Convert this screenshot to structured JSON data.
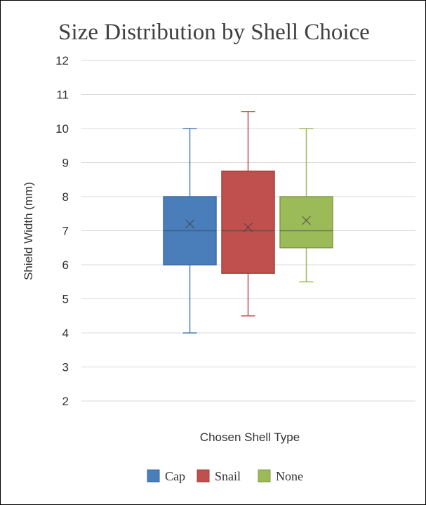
{
  "chart_data": {
    "type": "box",
    "title": "Size Distribution by Shell Choice",
    "xlabel": "Chosen Shell Type",
    "ylabel": "Shield Width (mm)",
    "ylim": [
      2,
      12
    ],
    "yticks": [
      2,
      3,
      4,
      5,
      6,
      7,
      8,
      9,
      10,
      11,
      12
    ],
    "grid": true,
    "legend_position": "bottom",
    "series": [
      {
        "name": "Cap",
        "color": "#4a7ebb",
        "stroke": "#3a6aa3",
        "min": 4,
        "q1": 6,
        "median": 7,
        "q3": 8,
        "max": 10,
        "mean": 7.2
      },
      {
        "name": "Snail",
        "color": "#c0504d",
        "stroke": "#a33e3b",
        "min": 4.5,
        "q1": 5.75,
        "median": 7,
        "q3": 8.75,
        "max": 10.5,
        "mean": 7.1
      },
      {
        "name": "None",
        "color": "#9bbb59",
        "stroke": "#7f9c44",
        "min": 5.5,
        "q1": 6.5,
        "median": 7,
        "q3": 8,
        "max": 10,
        "mean": 7.3
      }
    ]
  }
}
